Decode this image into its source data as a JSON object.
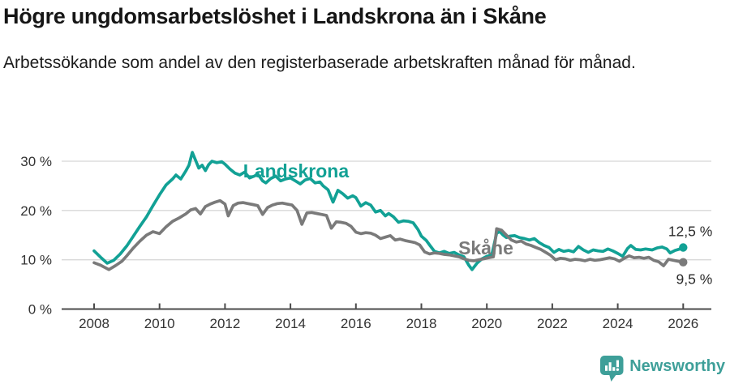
{
  "header": {
    "title": "Högre ungdomsarbetslöshet i Landskrona än i Skåne",
    "subtitle": "Arbetssökande som andel av den registerbaserade arbetskraften månad för månad."
  },
  "footer": {
    "brand": "Newsworthy",
    "logo_icon": "speech-bubble-with-bar-chart"
  },
  "colors": {
    "landskrona": "#12A195",
    "skane": "#7A7A7A",
    "grid": "#D8D8D8",
    "axis": "#4B4B4B",
    "tick_text": "#333333",
    "value_text": "#2B2B2B",
    "logo": "#3E9F99"
  },
  "chart_data": {
    "type": "line",
    "title": "Högre ungdomsarbetslöshet i Landskrona än i Skåne",
    "xlabel": "",
    "ylabel": "",
    "xlim": [
      2008,
      2026.8
    ],
    "ylim": [
      0,
      33
    ],
    "grid": "horizontal",
    "x_ticks": [
      2008,
      2010,
      2012,
      2014,
      2016,
      2018,
      2020,
      2022,
      2024,
      2026
    ],
    "y_ticks": [
      {
        "value": 0,
        "label": "0 %"
      },
      {
        "value": 10,
        "label": "10 %"
      },
      {
        "value": 20,
        "label": "20 %"
      },
      {
        "value": 30,
        "label": "30 %"
      }
    ],
    "annotations": [
      {
        "id": "landskrona",
        "text": "Landskrona",
        "x": 2014.17,
        "y": 28.0,
        "color": "#12A195"
      },
      {
        "id": "skane",
        "text": "Skåne",
        "x": 2019.97,
        "y": 12.4,
        "color": "#7A7A7A"
      }
    ],
    "series": [
      {
        "id": "landskrona",
        "name": "Landskrona",
        "color": "#12A195",
        "value_label": "12,5 %",
        "value_label_position": "above",
        "last_value": 12.5,
        "points": [
          [
            2008.0,
            11.8
          ],
          [
            2008.2,
            10.5
          ],
          [
            2008.4,
            9.3
          ],
          [
            2008.6,
            9.9
          ],
          [
            2008.8,
            11.2
          ],
          [
            2009.0,
            12.8
          ],
          [
            2009.2,
            14.8
          ],
          [
            2009.4,
            16.8
          ],
          [
            2009.6,
            18.7
          ],
          [
            2009.8,
            21.0
          ],
          [
            2010.0,
            23.2
          ],
          [
            2010.2,
            25.2
          ],
          [
            2010.4,
            26.4
          ],
          [
            2010.5,
            27.2
          ],
          [
            2010.65,
            26.4
          ],
          [
            2010.8,
            28.0
          ],
          [
            2010.9,
            29.2
          ],
          [
            2011.0,
            31.8
          ],
          [
            2011.1,
            30.2
          ],
          [
            2011.2,
            28.6
          ],
          [
            2011.3,
            29.2
          ],
          [
            2011.4,
            28.1
          ],
          [
            2011.5,
            29.3
          ],
          [
            2011.6,
            30.0
          ],
          [
            2011.75,
            29.7
          ],
          [
            2011.9,
            29.9
          ],
          [
            2012.0,
            29.4
          ],
          [
            2012.15,
            28.4
          ],
          [
            2012.3,
            27.6
          ],
          [
            2012.45,
            27.2
          ],
          [
            2012.6,
            27.8
          ],
          [
            2012.75,
            26.6
          ],
          [
            2012.9,
            27.0
          ],
          [
            2013.0,
            27.4
          ],
          [
            2013.15,
            26.0
          ],
          [
            2013.25,
            25.6
          ],
          [
            2013.4,
            26.5
          ],
          [
            2013.55,
            27.0
          ],
          [
            2013.7,
            26.0
          ],
          [
            2013.85,
            26.4
          ],
          [
            2014.0,
            26.6
          ],
          [
            2014.15,
            26.0
          ],
          [
            2014.3,
            25.4
          ],
          [
            2014.45,
            26.2
          ],
          [
            2014.6,
            26.5
          ],
          [
            2014.75,
            25.6
          ],
          [
            2014.9,
            25.8
          ],
          [
            2015.0,
            25.0
          ],
          [
            2015.15,
            24.2
          ],
          [
            2015.3,
            21.7
          ],
          [
            2015.45,
            24.1
          ],
          [
            2015.6,
            23.4
          ],
          [
            2015.75,
            22.5
          ],
          [
            2015.9,
            23.0
          ],
          [
            2016.0,
            22.6
          ],
          [
            2016.15,
            20.9
          ],
          [
            2016.3,
            21.6
          ],
          [
            2016.45,
            21.1
          ],
          [
            2016.6,
            19.7
          ],
          [
            2016.75,
            20.0
          ],
          [
            2016.9,
            18.9
          ],
          [
            2017.0,
            19.4
          ],
          [
            2017.15,
            18.7
          ],
          [
            2017.3,
            17.6
          ],
          [
            2017.45,
            17.9
          ],
          [
            2017.6,
            17.8
          ],
          [
            2017.75,
            17.5
          ],
          [
            2017.9,
            16.1
          ],
          [
            2018.0,
            14.8
          ],
          [
            2018.15,
            13.9
          ],
          [
            2018.25,
            13.0
          ],
          [
            2018.4,
            11.7
          ],
          [
            2018.55,
            11.4
          ],
          [
            2018.7,
            11.7
          ],
          [
            2018.85,
            11.3
          ],
          [
            2019.0,
            11.5
          ],
          [
            2019.15,
            11.0
          ],
          [
            2019.3,
            10.6
          ],
          [
            2019.45,
            8.9
          ],
          [
            2019.55,
            8.0
          ],
          [
            2019.7,
            9.3
          ],
          [
            2019.85,
            10.2
          ],
          [
            2020.0,
            10.7
          ],
          [
            2020.15,
            11.0
          ],
          [
            2020.3,
            15.4
          ],
          [
            2020.4,
            15.7
          ],
          [
            2020.5,
            15.0
          ],
          [
            2020.6,
            14.5
          ],
          [
            2020.7,
            14.8
          ],
          [
            2020.85,
            14.9
          ],
          [
            2021.0,
            14.5
          ],
          [
            2021.15,
            14.3
          ],
          [
            2021.3,
            14.0
          ],
          [
            2021.45,
            14.3
          ],
          [
            2021.6,
            13.5
          ],
          [
            2021.75,
            12.9
          ],
          [
            2021.9,
            12.5
          ],
          [
            2022.05,
            11.5
          ],
          [
            2022.2,
            12.1
          ],
          [
            2022.35,
            11.7
          ],
          [
            2022.5,
            11.9
          ],
          [
            2022.65,
            11.6
          ],
          [
            2022.8,
            12.7
          ],
          [
            2022.95,
            12.0
          ],
          [
            2023.1,
            11.5
          ],
          [
            2023.25,
            12.0
          ],
          [
            2023.4,
            11.8
          ],
          [
            2023.55,
            11.7
          ],
          [
            2023.7,
            12.2
          ],
          [
            2023.85,
            11.8
          ],
          [
            2024.0,
            11.3
          ],
          [
            2024.15,
            10.7
          ],
          [
            2024.3,
            12.3
          ],
          [
            2024.4,
            12.9
          ],
          [
            2024.55,
            12.1
          ],
          [
            2024.7,
            12.0
          ],
          [
            2024.85,
            12.2
          ],
          [
            2025.05,
            12.0
          ],
          [
            2025.2,
            12.4
          ],
          [
            2025.35,
            12.6
          ],
          [
            2025.5,
            12.2
          ],
          [
            2025.6,
            11.4
          ],
          [
            2025.75,
            11.9
          ],
          [
            2025.9,
            12.2
          ],
          [
            2026.0,
            12.5
          ]
        ]
      },
      {
        "id": "skane",
        "name": "Skåne",
        "color": "#7A7A7A",
        "value_label": "9,5 %",
        "value_label_position": "below",
        "last_value": 9.5,
        "points": [
          [
            2008.0,
            9.4
          ],
          [
            2008.2,
            8.9
          ],
          [
            2008.45,
            8.0
          ],
          [
            2008.65,
            8.8
          ],
          [
            2008.85,
            9.7
          ],
          [
            2009.0,
            10.8
          ],
          [
            2009.2,
            12.4
          ],
          [
            2009.4,
            13.8
          ],
          [
            2009.6,
            15.0
          ],
          [
            2009.8,
            15.7
          ],
          [
            2010.0,
            15.3
          ],
          [
            2010.2,
            16.7
          ],
          [
            2010.4,
            17.8
          ],
          [
            2010.6,
            18.5
          ],
          [
            2010.8,
            19.3
          ],
          [
            2010.95,
            20.1
          ],
          [
            2011.1,
            20.4
          ],
          [
            2011.25,
            19.3
          ],
          [
            2011.4,
            20.8
          ],
          [
            2011.55,
            21.3
          ],
          [
            2011.7,
            21.7
          ],
          [
            2011.85,
            22.0
          ],
          [
            2012.0,
            21.3
          ],
          [
            2012.1,
            18.9
          ],
          [
            2012.25,
            21.0
          ],
          [
            2012.4,
            21.5
          ],
          [
            2012.55,
            21.6
          ],
          [
            2012.7,
            21.4
          ],
          [
            2012.85,
            21.2
          ],
          [
            2013.0,
            21.0
          ],
          [
            2013.15,
            19.2
          ],
          [
            2013.3,
            20.6
          ],
          [
            2013.45,
            21.1
          ],
          [
            2013.6,
            21.4
          ],
          [
            2013.75,
            21.5
          ],
          [
            2013.9,
            21.3
          ],
          [
            2014.05,
            21.1
          ],
          [
            2014.2,
            20.0
          ],
          [
            2014.35,
            17.2
          ],
          [
            2014.5,
            19.5
          ],
          [
            2014.65,
            19.6
          ],
          [
            2014.8,
            19.4
          ],
          [
            2014.95,
            19.2
          ],
          [
            2015.1,
            19.0
          ],
          [
            2015.25,
            16.4
          ],
          [
            2015.4,
            17.7
          ],
          [
            2015.55,
            17.6
          ],
          [
            2015.7,
            17.4
          ],
          [
            2015.85,
            16.8
          ],
          [
            2016.0,
            15.6
          ],
          [
            2016.15,
            15.3
          ],
          [
            2016.3,
            15.5
          ],
          [
            2016.45,
            15.4
          ],
          [
            2016.6,
            15.0
          ],
          [
            2016.75,
            14.3
          ],
          [
            2016.9,
            14.6
          ],
          [
            2017.05,
            14.9
          ],
          [
            2017.2,
            14.0
          ],
          [
            2017.35,
            14.2
          ],
          [
            2017.5,
            13.9
          ],
          [
            2017.65,
            13.7
          ],
          [
            2017.8,
            13.5
          ],
          [
            2017.95,
            13.0
          ],
          [
            2018.1,
            11.6
          ],
          [
            2018.25,
            11.2
          ],
          [
            2018.4,
            11.4
          ],
          [
            2018.55,
            11.3
          ],
          [
            2018.7,
            11.1
          ],
          [
            2018.85,
            11.0
          ],
          [
            2019.0,
            10.8
          ],
          [
            2019.15,
            10.6
          ],
          [
            2019.3,
            10.2
          ],
          [
            2019.45,
            9.9
          ],
          [
            2019.6,
            9.8
          ],
          [
            2019.75,
            10.0
          ],
          [
            2019.9,
            10.2
          ],
          [
            2020.05,
            10.4
          ],
          [
            2020.2,
            10.6
          ],
          [
            2020.3,
            16.3
          ],
          [
            2020.45,
            16.0
          ],
          [
            2020.6,
            15.0
          ],
          [
            2020.75,
            14.0
          ],
          [
            2020.9,
            13.6
          ],
          [
            2021.05,
            13.8
          ],
          [
            2021.2,
            13.2
          ],
          [
            2021.35,
            12.9
          ],
          [
            2021.5,
            12.5
          ],
          [
            2021.65,
            12.1
          ],
          [
            2021.8,
            11.5
          ],
          [
            2021.95,
            10.9
          ],
          [
            2022.1,
            10.0
          ],
          [
            2022.25,
            10.3
          ],
          [
            2022.4,
            10.2
          ],
          [
            2022.55,
            9.9
          ],
          [
            2022.7,
            10.1
          ],
          [
            2022.85,
            10.0
          ],
          [
            2023.0,
            9.8
          ],
          [
            2023.15,
            10.1
          ],
          [
            2023.3,
            9.9
          ],
          [
            2023.45,
            10.0
          ],
          [
            2023.6,
            10.2
          ],
          [
            2023.75,
            10.4
          ],
          [
            2023.9,
            10.2
          ],
          [
            2024.05,
            9.7
          ],
          [
            2024.2,
            10.3
          ],
          [
            2024.35,
            10.8
          ],
          [
            2024.5,
            10.4
          ],
          [
            2024.65,
            10.5
          ],
          [
            2024.8,
            10.3
          ],
          [
            2024.95,
            10.5
          ],
          [
            2025.1,
            9.9
          ],
          [
            2025.25,
            9.6
          ],
          [
            2025.4,
            8.8
          ],
          [
            2025.55,
            10.1
          ],
          [
            2025.7,
            9.9
          ],
          [
            2025.85,
            9.7
          ],
          [
            2026.0,
            9.5
          ]
        ]
      }
    ]
  }
}
